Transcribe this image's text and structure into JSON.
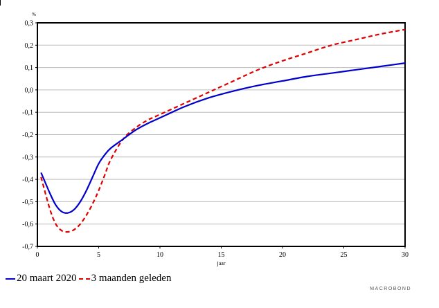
{
  "chart_data": {
    "type": "line",
    "ylabel": "%",
    "xlabel": "jaar",
    "xlim": [
      0,
      30
    ],
    "ylim": [
      -0.7,
      0.3
    ],
    "xticks": [
      0,
      5,
      10,
      15,
      20,
      25,
      30
    ],
    "xtick_labels": [
      "0",
      "5",
      "10",
      "15",
      "20",
      "25",
      "30"
    ],
    "yticks": [
      0.3,
      0.2,
      0.1,
      0.0,
      -0.1,
      -0.2,
      -0.3,
      -0.4,
      -0.5,
      -0.6,
      -0.7
    ],
    "ytick_labels": [
      "0,3",
      "0,2",
      "0,1",
      "0,0",
      "-0,1",
      "-0,2",
      "-0,3",
      "-0,4",
      "-0,5",
      "-0,6",
      "-0,7"
    ],
    "grid": true,
    "legend_position": "bottom-left",
    "series": [
      {
        "name": "20 maart 2020",
        "color": "#0000cc",
        "style": "solid",
        "x": [
          0.3,
          1,
          1.5,
          2,
          2.5,
          3,
          3.5,
          4,
          4.5,
          5,
          5.5,
          6,
          7,
          8,
          9,
          10,
          12,
          14,
          16,
          18,
          20,
          22,
          24,
          26,
          28,
          30
        ],
        "y": [
          -0.37,
          -0.46,
          -0.515,
          -0.545,
          -0.55,
          -0.535,
          -0.5,
          -0.45,
          -0.39,
          -0.33,
          -0.29,
          -0.26,
          -0.22,
          -0.18,
          -0.15,
          -0.125,
          -0.075,
          -0.035,
          -0.005,
          0.02,
          0.04,
          0.06,
          0.075,
          0.09,
          0.105,
          0.12
        ]
      },
      {
        "name": "3 maanden geleden",
        "color": "#dd0000",
        "style": "dashed",
        "x": [
          0.3,
          1,
          1.5,
          2,
          2.5,
          3,
          3.5,
          4,
          4.5,
          5,
          5.5,
          6,
          7,
          8,
          9,
          10,
          12,
          14,
          16,
          18,
          20,
          22,
          24,
          26,
          28,
          30
        ],
        "y": [
          -0.39,
          -0.53,
          -0.6,
          -0.63,
          -0.635,
          -0.625,
          -0.6,
          -0.56,
          -0.51,
          -0.45,
          -0.38,
          -0.31,
          -0.22,
          -0.17,
          -0.135,
          -0.11,
          -0.06,
          -0.01,
          0.04,
          0.09,
          0.13,
          0.165,
          0.2,
          0.225,
          0.25,
          0.27
        ]
      }
    ]
  },
  "legend": {
    "item1": "20 maart 2020",
    "item2": "3 maanden geleden"
  },
  "brand": "MACROBOND"
}
